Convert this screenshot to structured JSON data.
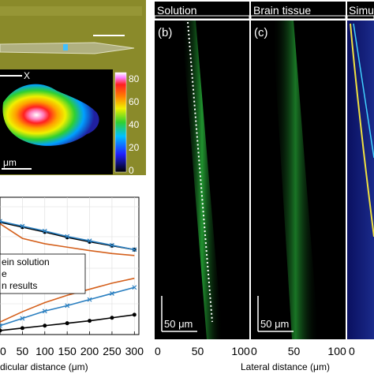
{
  "panels": {
    "solution_title": "Solution",
    "brain_title": "Brain tissue",
    "sim_title": "Simu",
    "b_tag": "(b)",
    "c_tag": "(c)",
    "scalebar_b": "50 μm",
    "scalebar_c": "50 μm",
    "micro_axis_x": "X",
    "micro_scale_unit": "μm",
    "lateral_xlabel": "Lateral distance (μm)",
    "left_xlabel": "dicular distance (μm)"
  },
  "colors": {
    "fluorescence": "#33e84a",
    "microscope_bg": "#8a8a2a",
    "sim_bg": "#1a2a8a",
    "series_black": "#000000",
    "series_blue": "#2a7fc0",
    "series_orange": "#d4601c"
  },
  "chart_data": [
    {
      "type": "heatmap",
      "colorbar_ticks": [
        0,
        20,
        40,
        60,
        80
      ]
    },
    {
      "type": "line",
      "legend": [
        "ein solution",
        "e",
        "n results"
      ],
      "x_ticks": [
        0,
        50,
        100,
        150,
        200,
        250,
        300
      ],
      "xlim": [
        0,
        310
      ],
      "subplots": [
        {
          "ylim": [
            0,
            1
          ],
          "series": [
            {
              "name": "black",
              "x": [
                0,
                50,
                100,
                150,
                200,
                250,
                300
              ],
              "values": [
                0.78,
                0.68,
                0.58,
                0.47,
                0.38,
                0.3,
                0.22
              ]
            },
            {
              "name": "blue",
              "x": [
                0,
                50,
                100,
                150,
                200,
                250,
                300
              ],
              "values": [
                0.8,
                0.7,
                0.6,
                0.49,
                0.4,
                0.31,
                0.22
              ]
            },
            {
              "name": "orange",
              "x": [
                0,
                50,
                100,
                150,
                200,
                250,
                300
              ],
              "values": [
                0.75,
                0.45,
                0.34,
                0.27,
                0.2,
                0.14,
                0.1
              ]
            }
          ]
        },
        {
          "ylim": [
            0,
            1
          ],
          "series": [
            {
              "name": "black",
              "x": [
                0,
                50,
                100,
                150,
                200,
                250,
                300
              ],
              "values": [
                0.04,
                0.08,
                0.12,
                0.16,
                0.2,
                0.25,
                0.3
              ]
            },
            {
              "name": "blue",
              "x": [
                0,
                50,
                100,
                150,
                200,
                250,
                300
              ],
              "values": [
                0.12,
                0.24,
                0.36,
                0.45,
                0.55,
                0.65,
                0.75
              ]
            },
            {
              "name": "orange",
              "x": [
                0,
                50,
                100,
                150,
                200,
                250,
                300
              ],
              "values": [
                0.18,
                0.35,
                0.5,
                0.62,
                0.72,
                0.82,
                0.9
              ]
            }
          ]
        }
      ]
    },
    {
      "type": "heatmap",
      "x_ticks": [
        0,
        50,
        100
      ],
      "xlim": [
        0,
        110
      ]
    },
    {
      "type": "heatmap",
      "x_ticks": [
        0,
        50,
        100
      ],
      "xlim": [
        0,
        110
      ]
    },
    {
      "type": "heatmap",
      "x_ticks": [
        0
      ]
    }
  ]
}
